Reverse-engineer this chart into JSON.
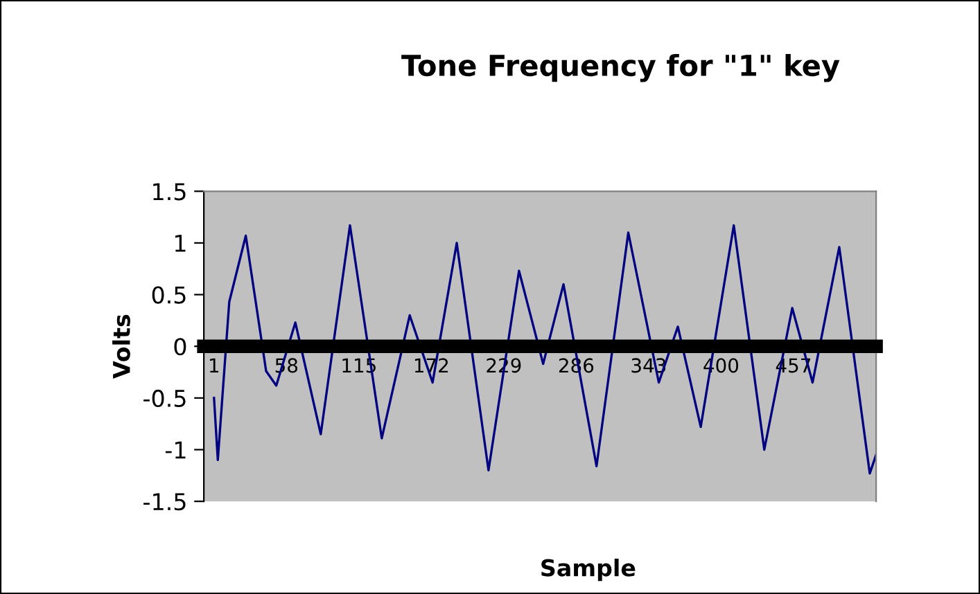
{
  "chart_data": {
    "type": "line",
    "title": "Tone Frequency for \"1\" key",
    "xlabel": "Sample",
    "ylabel": "Volts",
    "x": [
      1,
      4,
      13,
      26,
      42,
      50,
      65,
      85,
      108,
      133,
      155,
      173,
      192,
      217,
      241,
      260,
      276,
      302,
      327,
      351,
      366,
      384,
      410,
      434,
      456,
      472,
      493,
      517,
      522
    ],
    "series": [
      {
        "color": "#000080",
        "values": [
          -0.5,
          -1.1,
          0.43,
          1.07,
          -0.24,
          -0.38,
          0.23,
          -0.85,
          1.17,
          -0.89,
          0.3,
          -0.35,
          1.0,
          -1.2,
          0.73,
          -0.17,
          0.6,
          -1.16,
          1.1,
          -0.35,
          0.19,
          -0.78,
          1.17,
          -1.0,
          0.37,
          -0.35,
          0.96,
          -1.23,
          -1.05
        ]
      }
    ],
    "xlim": [
      -7,
      522
    ],
    "xticks": [
      1,
      58,
      115,
      172,
      229,
      286,
      343,
      400,
      457
    ],
    "ylim": [
      -1.5,
      1.5
    ],
    "yticks": [
      {
        "value": -1.5,
        "label": "-1.5"
      },
      {
        "value": -1,
        "label": "-1"
      },
      {
        "value": -0.5,
        "label": "-0.5"
      },
      0,
      {
        "value": 0.5,
        "label": "0.5"
      },
      1,
      {
        "value": 1.5,
        "label": "1.5"
      }
    ],
    "grid": false,
    "legend": false,
    "marker": "none",
    "line_style": "solid"
  }
}
